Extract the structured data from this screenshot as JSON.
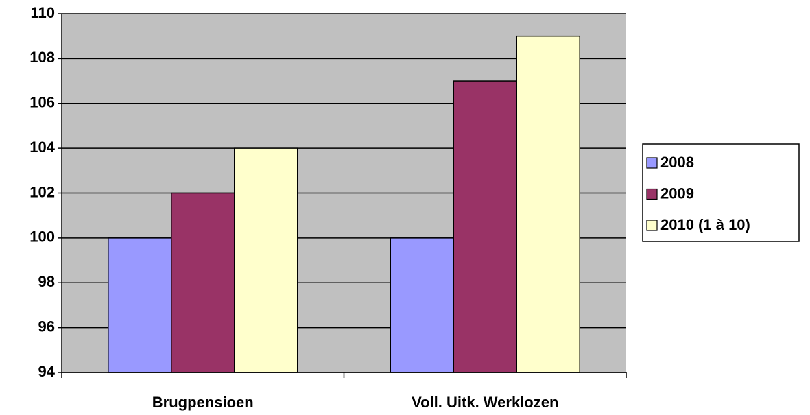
{
  "chart_data": {
    "type": "bar",
    "categories": [
      "Brugpensioen",
      "Voll. Uitk. Werklozen"
    ],
    "series": [
      {
        "name": "2008",
        "color": "#9999ff",
        "values": [
          100,
          100
        ]
      },
      {
        "name": "2009",
        "color": "#993366",
        "values": [
          102,
          107
        ]
      },
      {
        "name": "2010 (1 à 10)",
        "color": "#ffffcc",
        "values": [
          104,
          109
        ]
      }
    ],
    "ylim": [
      94,
      110
    ],
    "yticks": [
      94,
      96,
      98,
      100,
      102,
      104,
      106,
      108,
      110
    ],
    "grid": true,
    "legend": "right"
  }
}
